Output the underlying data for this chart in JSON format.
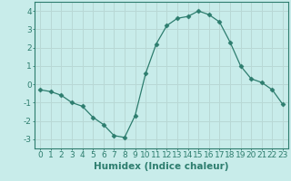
{
  "x": [
    0,
    1,
    2,
    3,
    4,
    5,
    6,
    7,
    8,
    9,
    10,
    11,
    12,
    13,
    14,
    15,
    16,
    17,
    18,
    19,
    20,
    21,
    22,
    23
  ],
  "y": [
    -0.3,
    -0.4,
    -0.6,
    -1.0,
    -1.2,
    -1.8,
    -2.2,
    -2.8,
    -2.9,
    -1.7,
    0.6,
    2.2,
    3.2,
    3.6,
    3.7,
    4.0,
    3.8,
    3.4,
    2.3,
    1.0,
    0.3,
    0.1,
    -0.3,
    -1.1
  ],
  "line_color": "#2d7d6e",
  "marker": "D",
  "marker_size": 2.5,
  "bg_color": "#c8ecea",
  "grid_color": "#b8d8d5",
  "axis_color": "#2d7d6e",
  "xlabel": "Humidex (Indice chaleur)",
  "xlabel_fontsize": 7.5,
  "tick_fontsize": 6.5,
  "xlim": [
    -0.5,
    23.5
  ],
  "ylim": [
    -3.5,
    4.5
  ],
  "yticks": [
    -3,
    -2,
    -1,
    0,
    1,
    2,
    3,
    4
  ],
  "xticks": [
    0,
    1,
    2,
    3,
    4,
    5,
    6,
    7,
    8,
    9,
    10,
    11,
    12,
    13,
    14,
    15,
    16,
    17,
    18,
    19,
    20,
    21,
    22,
    23
  ]
}
